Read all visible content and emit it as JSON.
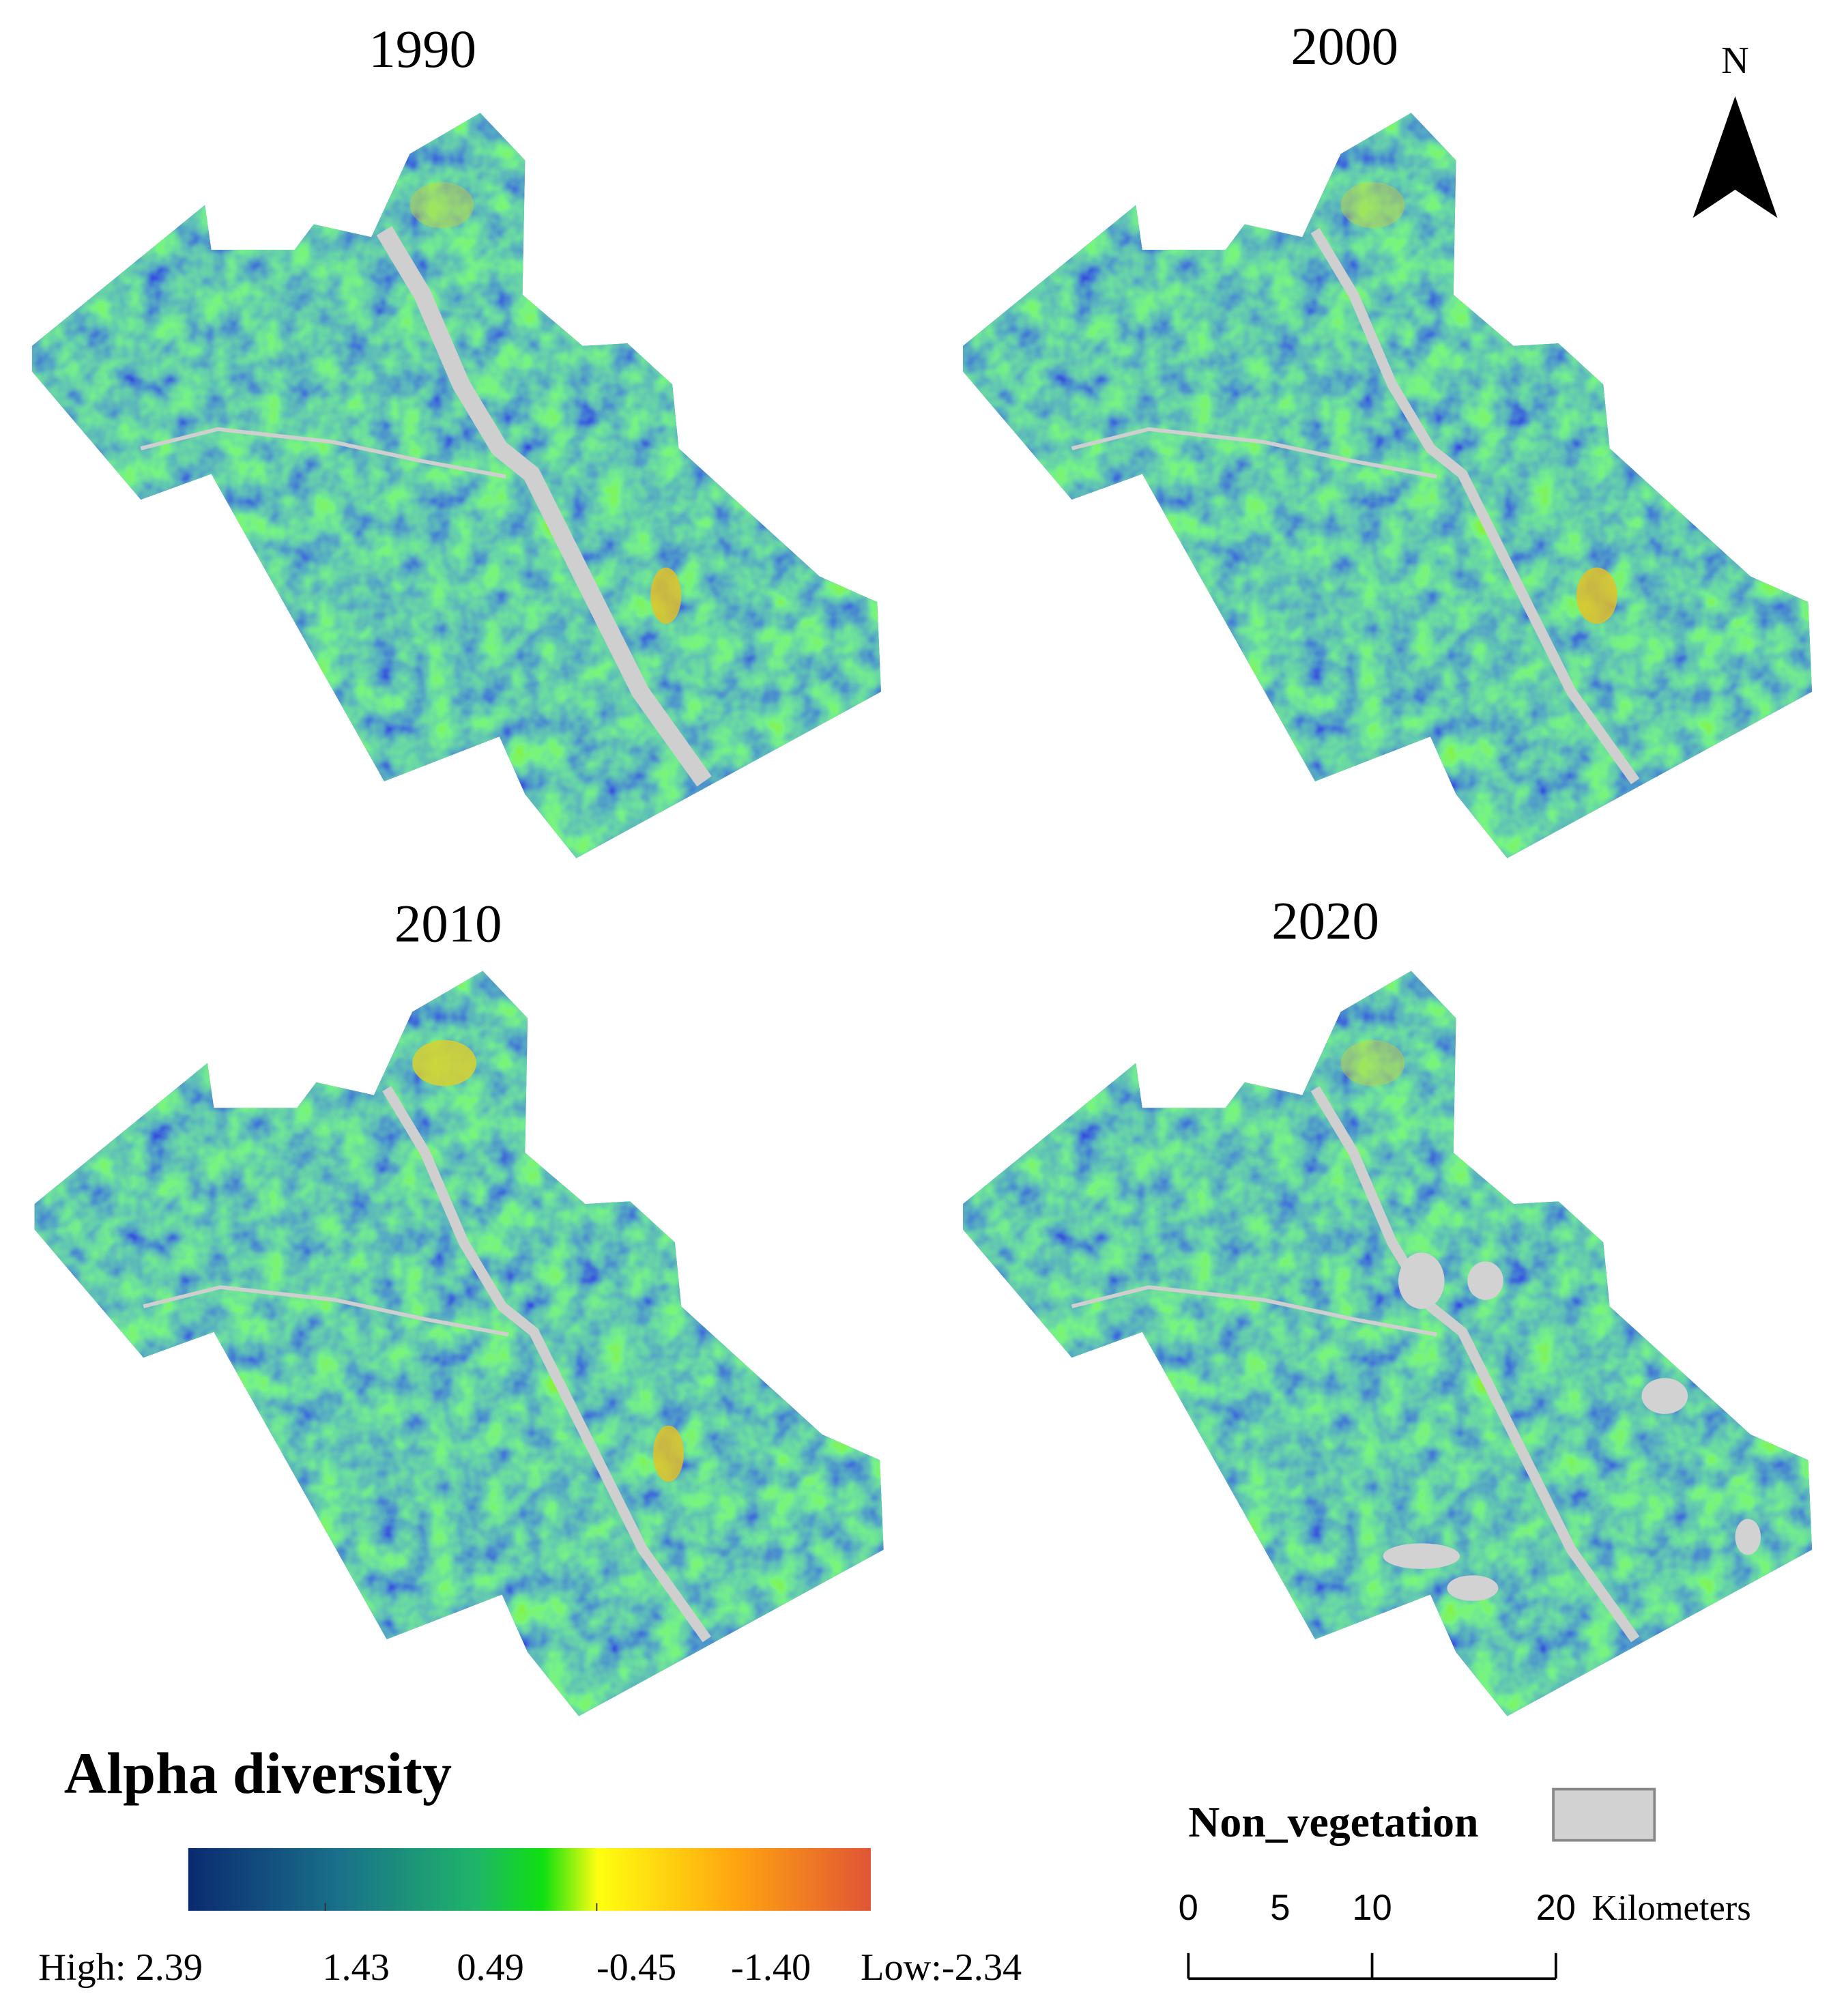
{
  "panels": [
    {
      "title": "1990"
    },
    {
      "title": "2000"
    },
    {
      "title": "2010"
    },
    {
      "title": "2020"
    }
  ],
  "north_arrow": {
    "label": "N"
  },
  "legend": {
    "title": "Alpha diversity",
    "labels": [
      "High: 2.39",
      "1.43",
      "0.49",
      "-0.45",
      "-1.40",
      "Low:-2.34"
    ],
    "non_vegetation": "Non_vegetation"
  },
  "scale_bar": {
    "ticks": [
      0,
      5,
      10,
      20
    ],
    "unit": "Kilometers"
  }
}
